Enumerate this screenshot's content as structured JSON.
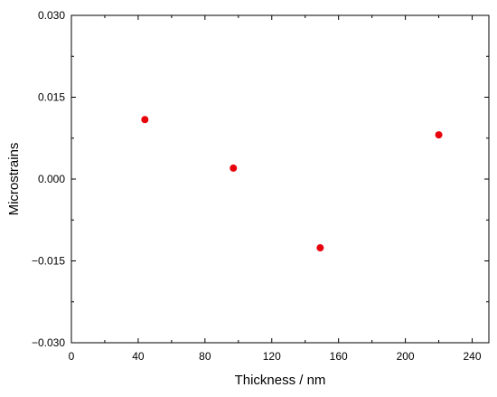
{
  "chart_data": {
    "type": "scatter",
    "title": "",
    "xlabel": "Thickness / nm",
    "ylabel": "Microstrains",
    "xlim": [
      0,
      250
    ],
    "ylim": [
      -0.03,
      0.03
    ],
    "x_ticks": [
      0,
      40,
      80,
      120,
      160,
      200,
      240
    ],
    "y_ticks": [
      -0.03,
      -0.015,
      0.0,
      0.015,
      0.03
    ],
    "x_tick_labels": [
      "0",
      "40",
      "80",
      "120",
      "160",
      "200",
      "240"
    ],
    "y_tick_labels": [
      "−0.030",
      "−0.015",
      "0.000",
      "0.015",
      "0.030"
    ],
    "grid": false,
    "series": [
      {
        "color": "#e8000b",
        "points": [
          {
            "x": 44,
            "y": 0.0109
          },
          {
            "x": 97,
            "y": 0.002
          },
          {
            "x": 149,
            "y": -0.0126
          },
          {
            "x": 220,
            "y": 0.0081
          }
        ]
      }
    ]
  }
}
